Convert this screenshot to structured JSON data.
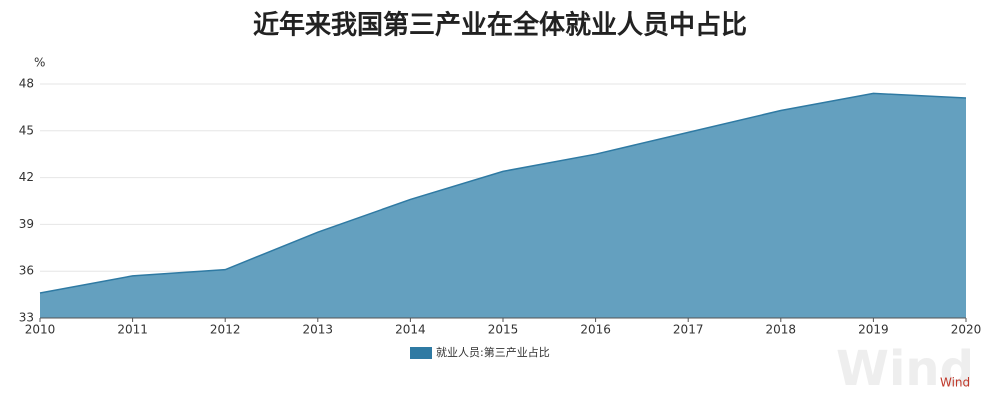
{
  "chart_data": {
    "type": "area",
    "title": "近年来我国第三产业在全体就业人员中占比",
    "y_unit": "%",
    "categories": [
      "2010",
      "2011",
      "2012",
      "2013",
      "2014",
      "2015",
      "2016",
      "2017",
      "2018",
      "2019",
      "2020"
    ],
    "series": [
      {
        "name": "就业人员:第三产业占比",
        "color": "#2f7aa3",
        "fill": "#64a0bf",
        "values": [
          34.6,
          35.7,
          36.1,
          38.5,
          40.6,
          42.4,
          43.5,
          44.9,
          46.3,
          47.4,
          47.1
        ]
      }
    ],
    "ylim": [
      33,
      48
    ],
    "yticks": [
      33,
      36,
      39,
      42,
      45,
      48
    ],
    "grid": true,
    "watermark": "Wind",
    "source": "Wind"
  }
}
